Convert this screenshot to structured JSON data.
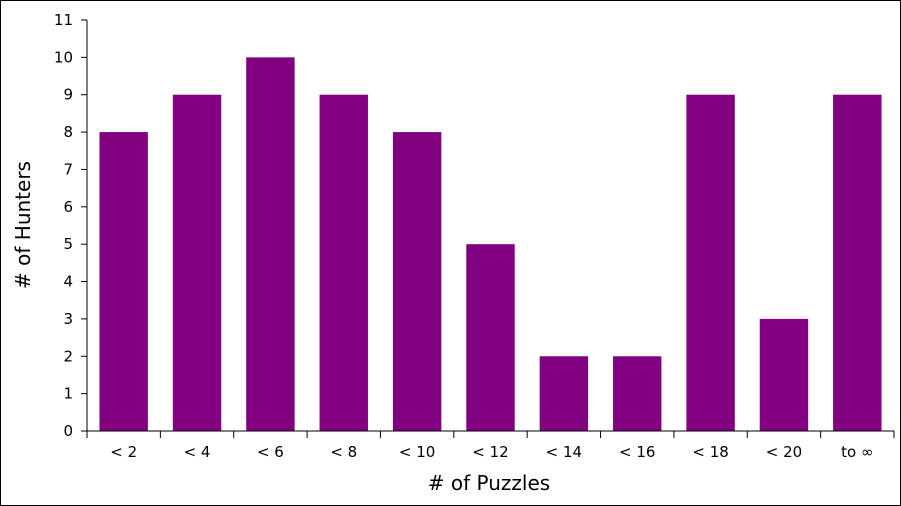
{
  "chart_data": {
    "type": "bar",
    "title": "",
    "xlabel": "# of Puzzles",
    "ylabel": "# of Hunters",
    "categories": [
      "< 2",
      "< 4",
      "< 6",
      "< 8",
      "< 10",
      "< 12",
      "< 14",
      "< 16",
      "< 18",
      "< 20",
      "to ∞"
    ],
    "values": [
      8,
      9,
      10,
      9,
      8,
      5,
      2,
      2,
      9,
      3,
      9
    ],
    "ylim": [
      0,
      11
    ],
    "yticks": [
      "0",
      "1",
      "2",
      "3",
      "4",
      "5",
      "6",
      "7",
      "8",
      "9",
      "10",
      "11"
    ],
    "grid": false,
    "legend": "none",
    "bar_color": "#800080"
  }
}
